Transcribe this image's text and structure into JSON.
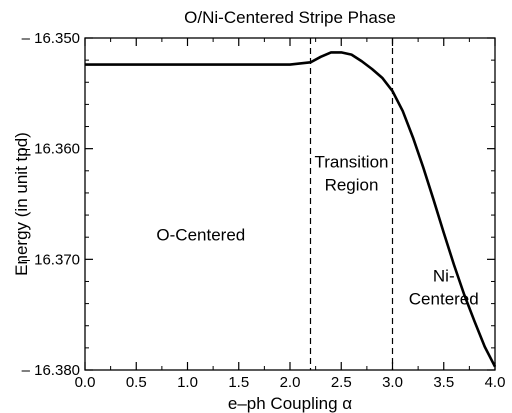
{
  "chart_data": {
    "type": "line",
    "title": "O/Ni-Centered Stripe Phase",
    "xlabel": "e–ph Coupling α",
    "ylabel": "Energy (in unit tpd)",
    "xlim": [
      0.0,
      4.0
    ],
    "ylim": [
      -16.38,
      -16.35
    ],
    "x_ticks": [
      "0.0",
      "0.5",
      "1.0",
      "1.5",
      "2.0",
      "2.5",
      "3.0",
      "3.5",
      "4.0"
    ],
    "x_tick_values": [
      0.0,
      0.5,
      1.0,
      1.5,
      2.0,
      2.5,
      3.0,
      3.5,
      4.0
    ],
    "y_ticks": [
      "– 16.350",
      "– 16.360",
      "– 16.370",
      "– 16.380"
    ],
    "y_tick_values": [
      -16.35,
      -16.36,
      -16.37,
      -16.38
    ],
    "grid": false,
    "series": [
      {
        "x": [
          0.0,
          0.5,
          1.0,
          1.5,
          2.0,
          2.2,
          2.3,
          2.4,
          2.5,
          2.6,
          2.7,
          2.8,
          2.9,
          3.0,
          3.1,
          3.2,
          3.3,
          3.4,
          3.5,
          3.6,
          3.7,
          3.8,
          3.9,
          4.0
        ],
        "y": [
          -16.3524,
          -16.3524,
          -16.3524,
          -16.3524,
          -16.3524,
          -16.3522,
          -16.3517,
          -16.3513,
          -16.3513,
          -16.3515,
          -16.3521,
          -16.3528,
          -16.3536,
          -16.3548,
          -16.3566,
          -16.359,
          -16.3617,
          -16.3646,
          -16.3676,
          -16.3705,
          -16.3732,
          -16.3756,
          -16.3779,
          -16.3797
        ]
      }
    ],
    "vlines": [
      2.2,
      3.0
    ],
    "annotations": [
      {
        "lines": [
          "O-Centered"
        ],
        "x": 1.13,
        "y": -16.3683
      },
      {
        "lines": [
          "Transition",
          "Region"
        ],
        "x": 2.6,
        "y": -16.3617
      },
      {
        "lines": [
          "Ni-",
          "Centered"
        ],
        "x": 3.5,
        "y": -16.372
      }
    ]
  }
}
